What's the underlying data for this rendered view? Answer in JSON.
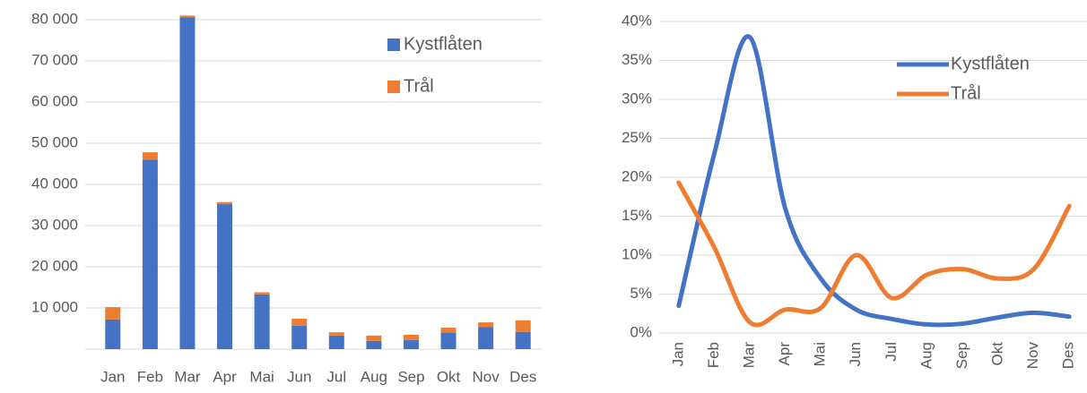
{
  "chart_data": [
    {
      "type": "bar",
      "stacked": true,
      "categories": [
        "Jan",
        "Feb",
        "Mar",
        "Apr",
        "Mai",
        "Jun",
        "Jul",
        "Aug",
        "Sep",
        "Okt",
        "Nov",
        "Des"
      ],
      "series": [
        {
          "name": "Kystflåten",
          "color": "#4472c4",
          "values": [
            7200,
            46000,
            80600,
            35200,
            13300,
            5700,
            3300,
            2000,
            2200,
            4000,
            5400,
            4200
          ]
        },
        {
          "name": "Trål",
          "color": "#ed7d31",
          "values": [
            3000,
            1800,
            400,
            500,
            500,
            1700,
            800,
            1300,
            1300,
            1200,
            1100,
            2800
          ]
        }
      ],
      "ylim": [
        0,
        80000
      ],
      "yticks": [
        {
          "value": 10000,
          "label": "10 000"
        },
        {
          "value": 20000,
          "label": "20 000"
        },
        {
          "value": 30000,
          "label": "30 000"
        },
        {
          "value": 40000,
          "label": "40 000"
        },
        {
          "value": 50000,
          "label": "50 000"
        },
        {
          "value": 60000,
          "label": "60 000"
        },
        {
          "value": 70000,
          "label": "70 000"
        },
        {
          "value": 80000,
          "label": "80 000"
        }
      ],
      "grid": true,
      "legend": "top-right"
    },
    {
      "type": "line",
      "smooth": true,
      "categories": [
        "Jan",
        "Feb",
        "Mar",
        "Apr",
        "Mai",
        "Jun",
        "Jul",
        "Aug",
        "Sep",
        "Okt",
        "Nov",
        "Des"
      ],
      "series": [
        {
          "name": "Kystflåten",
          "color": "#4472c4",
          "values": [
            3.5,
            23,
            38,
            16,
            7,
            3,
            1.8,
            1.1,
            1.2,
            2,
            2.6,
            2.1
          ]
        },
        {
          "name": "Trål",
          "color": "#ed7d31",
          "values": [
            19.3,
            11,
            1.4,
            3,
            3.2,
            10,
            4.5,
            7.5,
            8.2,
            7,
            8.2,
            16.3
          ]
        }
      ],
      "ylim": [
        0,
        40
      ],
      "yticks": [
        {
          "value": 0,
          "label": "0%"
        },
        {
          "value": 5,
          "label": "5%"
        },
        {
          "value": 10,
          "label": "10%"
        },
        {
          "value": 15,
          "label": "15%"
        },
        {
          "value": 20,
          "label": "20%"
        },
        {
          "value": 25,
          "label": "25%"
        },
        {
          "value": 30,
          "label": "30%"
        },
        {
          "value": 35,
          "label": "35%"
        },
        {
          "value": 40,
          "label": "40%"
        }
      ],
      "grid": true,
      "legend": "top-right"
    }
  ]
}
